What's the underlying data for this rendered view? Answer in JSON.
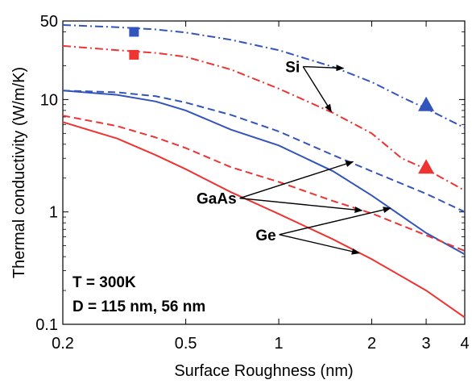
{
  "chart_data": {
    "type": "line",
    "xlabel": "Surface Roughness (nm)",
    "ylabel": "Thermal conductivity (W/m/K)",
    "x_scale": "log",
    "y_scale": "log",
    "xlim": [
      0.2,
      4
    ],
    "ylim": [
      0.1,
      50
    ],
    "x_ticks": [
      0.2,
      0.5,
      1,
      2,
      3,
      4
    ],
    "x_tick_labels": [
      "0.2",
      "0.5",
      "1",
      "2",
      "3",
      "4"
    ],
    "y_ticks": [
      0.1,
      1,
      10,
      50
    ],
    "y_tick_labels": [
      "0.1",
      "1",
      "10",
      "50"
    ],
    "grid": false,
    "series": [
      {
        "color": "#3355bb",
        "dash": "dashdot",
        "x": [
          0.2,
          0.3,
          0.4,
          0.5,
          0.7,
          1.0,
          1.5,
          2.0,
          2.5,
          3.0,
          4.0
        ],
        "y": [
          46,
          44,
          42,
          39.5,
          34,
          27.5,
          19.5,
          14.3,
          10.5,
          8.3,
          5.6
        ]
      },
      {
        "color": "#ee3333",
        "dash": "dashdot",
        "x": [
          0.2,
          0.3,
          0.4,
          0.5,
          0.7,
          1.0,
          1.5,
          2.0,
          2.5,
          3.0,
          4.0
        ],
        "y": [
          30,
          27.5,
          26,
          24,
          18.5,
          12.5,
          7.6,
          5.0,
          3.0,
          2.4,
          1.55
        ]
      },
      {
        "color": "#3355bb",
        "dash": "dashed",
        "x": [
          0.2,
          0.3,
          0.4,
          0.5,
          0.7,
          1.0,
          1.5,
          2.0,
          3.0,
          4.0
        ],
        "y": [
          12,
          11.6,
          10.7,
          9.4,
          7.3,
          5.2,
          3.2,
          2.3,
          1.45,
          1.0
        ]
      },
      {
        "color": "#3355bb",
        "dash": "solid",
        "x": [
          0.2,
          0.3,
          0.4,
          0.5,
          0.7,
          1.0,
          1.5,
          2.0,
          3.0,
          4.0
        ],
        "y": [
          12,
          11.0,
          9.6,
          8.0,
          5.4,
          3.9,
          2.3,
          1.4,
          0.65,
          0.42
        ]
      },
      {
        "color": "#ee3333",
        "dash": "dashed",
        "x": [
          0.2,
          0.3,
          0.4,
          0.5,
          0.7,
          1.0,
          1.5,
          2.0,
          3.0,
          4.0
        ],
        "y": [
          7.2,
          5.8,
          4.6,
          3.7,
          2.5,
          1.85,
          1.25,
          0.97,
          0.62,
          0.45
        ]
      },
      {
        "color": "#ee3333",
        "dash": "solid",
        "x": [
          0.2,
          0.3,
          0.4,
          0.5,
          0.7,
          1.0,
          1.5,
          2.0,
          3.0,
          4.0
        ],
        "y": [
          6.3,
          4.5,
          3.2,
          2.4,
          1.5,
          0.96,
          0.57,
          0.38,
          0.2,
          0.115
        ]
      }
    ],
    "markers": [
      {
        "shape": "square",
        "color": "#3355bb",
        "x": 0.34,
        "y": 40
      },
      {
        "shape": "square",
        "color": "#ee3333",
        "x": 0.34,
        "y": 25
      },
      {
        "shape": "triangle",
        "color": "#3355bb",
        "x": 3.0,
        "y": 9
      },
      {
        "shape": "triangle",
        "color": "#ee3333",
        "x": 3.0,
        "y": 2.5
      }
    ],
    "annotations": [
      {
        "id": "si",
        "text": "Si",
        "x": 1.17,
        "y": 17.5,
        "arrows": [
          {
            "tx": 1.62,
            "ty": 19.0
          },
          {
            "tx": 1.48,
            "ty": 7.8
          }
        ]
      },
      {
        "id": "gaas",
        "text": "GaAs",
        "x": 0.73,
        "y": 1.18,
        "arrows": [
          {
            "tx": 1.74,
            "ty": 2.8
          },
          {
            "tx": 1.86,
            "ty": 1.03
          }
        ]
      },
      {
        "id": "ge",
        "text": "Ge",
        "x": 0.98,
        "y": 0.56,
        "arrows": [
          {
            "tx": 2.3,
            "ty": 1.08
          },
          {
            "tx": 1.82,
            "ty": 0.43
          }
        ]
      }
    ],
    "text_box": {
      "line1": "T = 300K",
      "line2": "D = 115 nm, 56 nm"
    }
  }
}
